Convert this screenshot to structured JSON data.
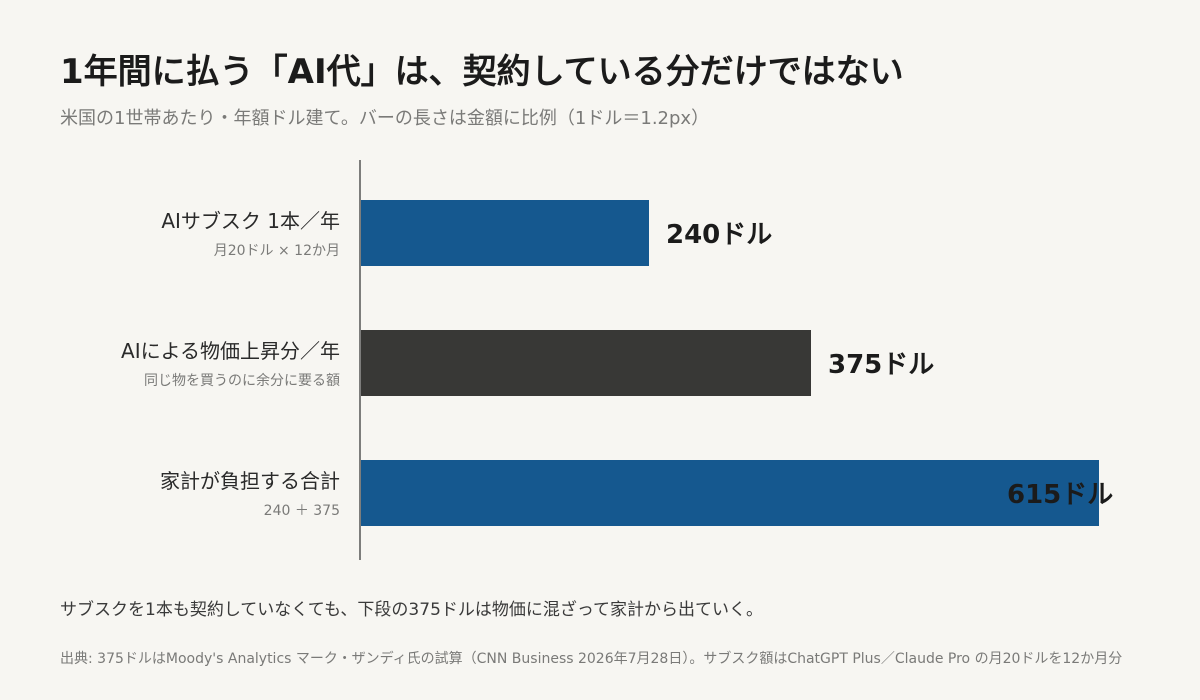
{
  "header": {
    "title": "1年間に払う「AI代」は、契約している分だけではない",
    "subtitle": "米国の1世帯あたり・年額ドル建て。バーの長さは金額に比例（1ドル＝1.2px）"
  },
  "chart_data": {
    "type": "bar",
    "orientation": "horizontal",
    "categories": [
      "AIサブスク 1本／年",
      "AIによる物価上昇分／年",
      "家計が負担する合計"
    ],
    "category_notes": [
      "月20ドル × 12か月",
      "同じ物を買うのに余分に要る額",
      "240 ＋ 375"
    ],
    "values": [
      240,
      375,
      615
    ],
    "value_labels": [
      "240ドル",
      "375ドル",
      "615ドル"
    ],
    "bar_colors": [
      "#15588f",
      "#383836",
      "#15588f"
    ],
    "scale_px_per_unit": 1.2,
    "xlim": [
      0,
      615
    ],
    "grid": false,
    "legend": "none"
  },
  "footer": {
    "note": "サブスクを1本も契約していなくても、下段の375ドルは物価に混ざって家計から出ていく。",
    "source": "出典: 375ドルはMoody's Analytics マーク・ザンディ氏の試算（CNN Business 2026年7月28日）。サブスク額はChatGPT Plus／Claude Pro の月20ドルを12か月分"
  }
}
